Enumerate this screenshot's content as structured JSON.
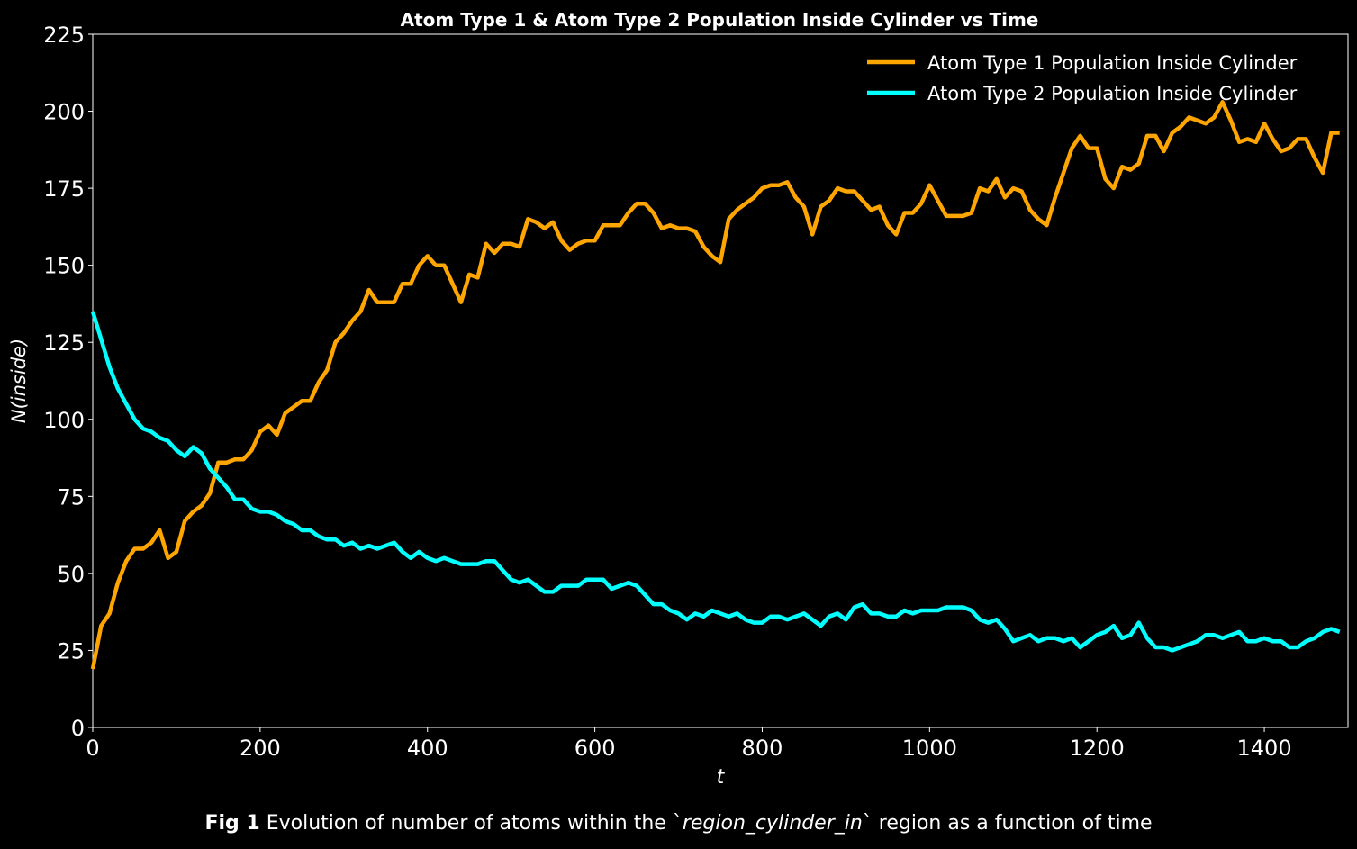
{
  "chart_data": {
    "type": "line",
    "title": "Atom Type 1 & Atom Type 2 Population Inside Cylinder vs Time",
    "xlabel": "t",
    "ylabel": "N(inside)",
    "xlim": [
      0,
      1500
    ],
    "ylim": [
      0,
      225
    ],
    "xticks": [
      0,
      200,
      400,
      600,
      800,
      1000,
      1200,
      1400
    ],
    "yticks": [
      0,
      25,
      50,
      75,
      100,
      125,
      150,
      175,
      200,
      225
    ],
    "grid": false,
    "legend": "top-right",
    "background": "#000000",
    "series": [
      {
        "name": "Atom Type 1 Population Inside Cylinder",
        "color": "#ffa500",
        "x": [
          0,
          10,
          20,
          30,
          40,
          50,
          60,
          70,
          80,
          90,
          100,
          110,
          120,
          130,
          140,
          150,
          160,
          170,
          180,
          190,
          200,
          210,
          220,
          230,
          240,
          250,
          260,
          270,
          280,
          290,
          300,
          310,
          320,
          330,
          340,
          350,
          360,
          370,
          380,
          390,
          400,
          410,
          420,
          430,
          440,
          450,
          460,
          470,
          480,
          490,
          500,
          510,
          520,
          530,
          540,
          550,
          560,
          570,
          580,
          590,
          600,
          610,
          620,
          630,
          640,
          650,
          660,
          670,
          680,
          690,
          700,
          710,
          720,
          730,
          740,
          750,
          760,
          770,
          780,
          790,
          800,
          810,
          820,
          830,
          840,
          850,
          860,
          870,
          880,
          890,
          900,
          910,
          920,
          930,
          940,
          950,
          960,
          970,
          980,
          990,
          1000,
          1010,
          1020,
          1030,
          1040,
          1050,
          1060,
          1070,
          1080,
          1090,
          1100,
          1110,
          1120,
          1130,
          1140,
          1150,
          1160,
          1170,
          1180,
          1190,
          1200,
          1210,
          1220,
          1230,
          1240,
          1250,
          1260,
          1270,
          1280,
          1290,
          1300,
          1310,
          1320,
          1330,
          1340,
          1350,
          1360,
          1370,
          1380,
          1390,
          1400,
          1410,
          1420,
          1430,
          1440,
          1450,
          1460,
          1470,
          1480,
          1490
        ],
        "values": [
          19,
          33,
          37,
          47,
          54,
          58,
          58,
          60,
          64,
          55,
          57,
          67,
          70,
          72,
          76,
          86,
          86,
          87,
          87,
          90,
          96,
          98,
          95,
          102,
          104,
          106,
          106,
          112,
          116,
          125,
          128,
          132,
          135,
          142,
          138,
          138,
          138,
          144,
          144,
          150,
          153,
          150,
          150,
          144,
          138,
          147,
          146,
          157,
          154,
          157,
          157,
          156,
          165,
          164,
          162,
          164,
          158,
          155,
          157,
          158,
          158,
          163,
          163,
          163,
          167,
          170,
          170,
          167,
          162,
          163,
          162,
          162,
          161,
          156,
          153,
          151,
          165,
          168,
          170,
          172,
          175,
          176,
          176,
          177,
          172,
          169,
          160,
          169,
          171,
          175,
          174,
          174,
          171,
          168,
          169,
          163,
          160,
          167,
          167,
          170,
          176,
          171,
          166,
          166,
          166,
          167,
          175,
          174,
          178,
          172,
          175,
          174,
          168,
          165,
          163,
          172,
          180,
          188,
          192,
          188,
          188,
          178,
          175,
          182,
          181,
          183,
          192,
          192,
          187,
          193,
          195,
          198,
          197,
          196,
          198,
          203,
          197,
          190,
          191,
          190,
          196,
          191,
          187,
          188,
          191,
          191,
          185,
          180,
          193,
          193
        ]
      },
      {
        "name": "Atom Type 2 Population Inside Cylinder",
        "color": "#00ffff",
        "x": [
          0,
          10,
          20,
          30,
          40,
          50,
          60,
          70,
          80,
          90,
          100,
          110,
          120,
          130,
          140,
          150,
          160,
          170,
          180,
          190,
          200,
          210,
          220,
          230,
          240,
          250,
          260,
          270,
          280,
          290,
          300,
          310,
          320,
          330,
          340,
          350,
          360,
          370,
          380,
          390,
          400,
          410,
          420,
          430,
          440,
          450,
          460,
          470,
          480,
          490,
          500,
          510,
          520,
          530,
          540,
          550,
          560,
          570,
          580,
          590,
          600,
          610,
          620,
          630,
          640,
          650,
          660,
          670,
          680,
          690,
          700,
          710,
          720,
          730,
          740,
          750,
          760,
          770,
          780,
          790,
          800,
          810,
          820,
          830,
          840,
          850,
          860,
          870,
          880,
          890,
          900,
          910,
          920,
          930,
          940,
          950,
          960,
          970,
          980,
          990,
          1000,
          1010,
          1020,
          1030,
          1040,
          1050,
          1060,
          1070,
          1080,
          1090,
          1100,
          1110,
          1120,
          1130,
          1140,
          1150,
          1160,
          1170,
          1180,
          1190,
          1200,
          1210,
          1220,
          1230,
          1240,
          1250,
          1260,
          1270,
          1280,
          1290,
          1300,
          1310,
          1320,
          1330,
          1340,
          1350,
          1360,
          1370,
          1380,
          1390,
          1400,
          1410,
          1420,
          1430,
          1440,
          1450,
          1460,
          1470,
          1480,
          1490
        ],
        "values": [
          135,
          126,
          117,
          110,
          105,
          100,
          97,
          96,
          94,
          93,
          90,
          88,
          91,
          89,
          84,
          81,
          78,
          74,
          74,
          71,
          70,
          70,
          69,
          67,
          66,
          64,
          64,
          62,
          61,
          61,
          59,
          60,
          58,
          59,
          58,
          59,
          60,
          57,
          55,
          57,
          55,
          54,
          55,
          54,
          53,
          53,
          53,
          54,
          54,
          51,
          48,
          47,
          48,
          46,
          44,
          44,
          46,
          46,
          46,
          48,
          48,
          48,
          45,
          46,
          47,
          46,
          43,
          40,
          40,
          38,
          37,
          35,
          37,
          36,
          38,
          37,
          36,
          37,
          35,
          34,
          34,
          36,
          36,
          35,
          36,
          37,
          35,
          33,
          36,
          37,
          35,
          39,
          40,
          37,
          37,
          36,
          36,
          38,
          37,
          38,
          38,
          38,
          39,
          39,
          39,
          38,
          35,
          34,
          35,
          32,
          28,
          29,
          30,
          28,
          29,
          29,
          28,
          29,
          26,
          28,
          30,
          31,
          33,
          29,
          30,
          34,
          29,
          26,
          26,
          25,
          26,
          27,
          28,
          30,
          30,
          29,
          30,
          31,
          28,
          28,
          29,
          28,
          28,
          26,
          26,
          28,
          29,
          31,
          32,
          31
        ]
      }
    ]
  },
  "caption": {
    "label": "Fig 1",
    "pre": "Evolution of number of atoms within the `",
    "code": "region_cylinder_in",
    "post": "` region as a function of time"
  }
}
